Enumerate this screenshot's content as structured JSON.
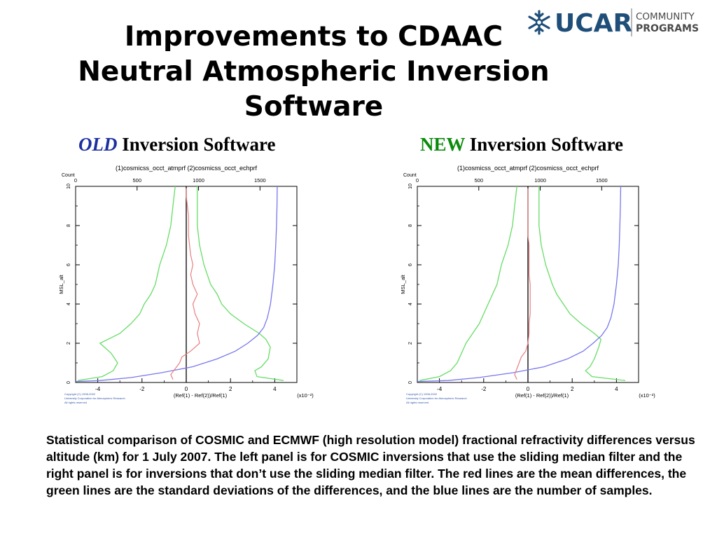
{
  "slide": {
    "title_lines": [
      "Improvements to CDAAC",
      "Neutral Atmospheric Inversion",
      "Software"
    ],
    "logo": {
      "mark": "UCAR",
      "sub1": "COMMUNITY",
      "sub2": "PROGRAMS",
      "color": "#1f4e79",
      "text_color": "#4a4a4a"
    },
    "panels": [
      {
        "keyword": "OLD",
        "rest": "Inversion Software",
        "keyword_color": "#1c2fa0"
      },
      {
        "keyword": "NEW",
        "rest": "Inversion Software",
        "keyword_color": "#0a8a0a"
      }
    ],
    "caption": "Statistical comparison of COSMIC and ECMWF (high resolution model) fractional refractivity differences versus altitude (km) for 1 July 2007. The left panel is for COSMIC inversions that use the sliding median filter and the right panel is for inversions that don’t use the sliding median filter. The red lines are the mean differences, the green lines are the standard deviations of the differences, and the blue lines are the number of samples."
  },
  "chart_data": [
    {
      "type": "line",
      "title": "(1)cosmicss_occt_atmprf (2)cosmicss_occt_echprf",
      "xlabel": "(Ref(1) - Ref(2))/Ref(1)",
      "ylabel": "MSL_alt",
      "x_multiplier_label": "(x10⁻²)",
      "top_axis_label": "Count",
      "xlim": [
        -5,
        5
      ],
      "ylim": [
        0,
        10
      ],
      "top_xlim": [
        0,
        1800
      ],
      "x_ticks": [
        -4,
        -2,
        0,
        2,
        4
      ],
      "y_ticks": [
        0,
        2,
        4,
        6,
        8,
        10
      ],
      "top_ticks": [
        0,
        500,
        1000,
        1500
      ],
      "copyright": [
        "Copyright (C) 1998-2002",
        "University Corporation for Atmospheric Research",
        "All rights reserved"
      ],
      "colors": {
        "mean": "#e88080",
        "std": "#66dd66",
        "count": "#7777ee",
        "zero": "#000000"
      },
      "mean": {
        "y": [
          0.15,
          0.4,
          0.7,
          1.0,
          1.3,
          1.6,
          2.0,
          2.5,
          3.0,
          3.5,
          4.0,
          4.5,
          5.0,
          5.5,
          6.0,
          6.5,
          7.0,
          7.5,
          8.0,
          8.5,
          9.0,
          9.5,
          9.9
        ],
        "x": [
          -0.6,
          -0.7,
          -0.5,
          -0.3,
          -0.2,
          0.2,
          0.6,
          0.5,
          0.6,
          0.4,
          0.3,
          0.5,
          0.3,
          0.2,
          0.3,
          0.2,
          0.15,
          0.1,
          0.1,
          0.1,
          0.05,
          0.0,
          0.0
        ]
      },
      "std_left": {
        "y": [
          0.1,
          0.3,
          0.6,
          1.0,
          1.5,
          2.0,
          2.5,
          3.0,
          3.5,
          4.0,
          4.5,
          5.0,
          6.0,
          7.0,
          8.0,
          9.0,
          10.0
        ],
        "x": [
          -4.9,
          -3.8,
          -3.3,
          -3.1,
          -3.4,
          -3.9,
          -3.0,
          -2.5,
          -2.1,
          -1.9,
          -1.6,
          -1.4,
          -1.2,
          -0.9,
          -0.7,
          -0.6,
          -0.5
        ]
      },
      "std_right": {
        "y": [
          0.1,
          0.3,
          0.6,
          0.8,
          1.2,
          1.8,
          2.2,
          2.5,
          3.0,
          3.5,
          4.0,
          4.5,
          5.0,
          6.0,
          7.0,
          8.0,
          9.0,
          10.0
        ],
        "x": [
          4.4,
          3.2,
          3.1,
          3.4,
          3.7,
          3.8,
          3.6,
          3.3,
          2.6,
          2.0,
          1.6,
          1.4,
          1.1,
          0.8,
          0.6,
          0.5,
          0.5,
          0.5
        ]
      },
      "count": {
        "y": [
          0.05,
          0.1,
          0.25,
          0.5,
          0.8,
          1.2,
          1.6,
          2.0,
          2.4,
          2.8,
          3.3,
          4.0,
          5.0,
          6.0,
          7.0,
          8.0,
          9.0,
          10.0
        ],
        "x": [
          0,
          200,
          450,
          700,
          950,
          1150,
          1300,
          1400,
          1480,
          1530,
          1560,
          1585,
          1605,
          1620,
          1628,
          1634,
          1638,
          1640
        ]
      }
    },
    {
      "type": "line",
      "title": "(1)cosmicss_occt_atmprf (2)cosmicss_occt_echprf",
      "xlabel": "(Ref(1) - Ref(2))/Ref(1)",
      "ylabel": "MSL_alt",
      "x_multiplier_label": "(x10⁻²)",
      "top_axis_label": "Count",
      "xlim": [
        -5,
        5
      ],
      "ylim": [
        0,
        10
      ],
      "top_xlim": [
        0,
        1800
      ],
      "x_ticks": [
        -4,
        -2,
        0,
        2,
        4
      ],
      "y_ticks": [
        0,
        2,
        4,
        6,
        8,
        10
      ],
      "top_ticks": [
        0,
        500,
        1000,
        1500
      ],
      "copyright": [
        "Copyright (C) 1998-2002",
        "University Corporation for Atmospheric Research",
        "All rights reserved"
      ],
      "colors": {
        "mean": "#e88080",
        "std": "#66dd66",
        "count": "#7777ee",
        "zero": "#000000"
      },
      "mean": {
        "y": [
          0.15,
          0.4,
          0.7,
          1.0,
          1.3,
          1.6,
          2.0,
          2.5,
          3.0,
          3.5,
          4.0,
          4.5,
          5.0,
          5.5,
          6.0,
          6.5,
          7.0,
          7.5,
          8.0,
          8.5,
          9.0,
          9.5,
          9.9
        ],
        "x": [
          -0.5,
          -0.6,
          -0.5,
          -0.4,
          -0.3,
          -0.1,
          0.0,
          0.05,
          0.05,
          0.1,
          0.1,
          0.1,
          0.1,
          0.05,
          0.05,
          0.05,
          0.05,
          0.0,
          0.0,
          0.0,
          0.0,
          0.0,
          0.0
        ]
      },
      "std_left": {
        "y": [
          0.1,
          0.3,
          0.6,
          1.0,
          1.5,
          2.0,
          2.5,
          3.0,
          3.5,
          4.0,
          4.5,
          5.0,
          6.0,
          7.0,
          8.0,
          9.0,
          10.0
        ],
        "x": [
          -4.9,
          -4.0,
          -3.5,
          -3.2,
          -3.0,
          -2.8,
          -2.5,
          -2.2,
          -2.0,
          -1.8,
          -1.6,
          -1.4,
          -1.2,
          -0.9,
          -0.7,
          -0.6,
          -0.5
        ]
      },
      "std_right": {
        "y": [
          0.1,
          0.3,
          0.6,
          0.8,
          1.2,
          1.8,
          2.2,
          2.5,
          3.0,
          3.5,
          4.0,
          4.5,
          5.0,
          6.0,
          7.0,
          8.0,
          9.0,
          10.0
        ],
        "x": [
          4.4,
          2.9,
          2.6,
          2.8,
          3.0,
          3.2,
          3.3,
          3.0,
          2.4,
          1.9,
          1.6,
          1.3,
          1.1,
          0.8,
          0.6,
          0.5,
          0.5,
          0.5
        ]
      },
      "count": {
        "y": [
          0.05,
          0.1,
          0.25,
          0.5,
          0.8,
          1.2,
          1.6,
          2.0,
          2.4,
          2.8,
          3.3,
          4.0,
          5.0,
          6.0,
          7.0,
          8.0,
          9.0,
          10.0
        ],
        "x": [
          0,
          250,
          500,
          780,
          1030,
          1220,
          1350,
          1430,
          1500,
          1545,
          1575,
          1600,
          1620,
          1635,
          1643,
          1648,
          1652,
          1655
        ]
      }
    }
  ]
}
